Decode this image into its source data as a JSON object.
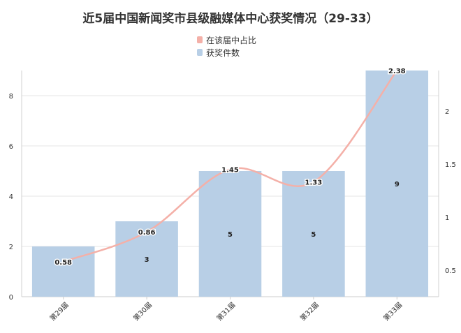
{
  "chart_data": {
    "type": "bar",
    "title": "近5届中国新闻奖市县级融媒体中心获奖情况（29-33）",
    "categories": [
      "第29届",
      "第30届",
      "第31届",
      "第32届",
      "第33届"
    ],
    "series": [
      {
        "name": "获奖件数",
        "type": "bar",
        "axis": "left",
        "color": "#b8cfe6",
        "values": [
          2,
          3,
          5,
          5,
          9
        ],
        "data_labels": [
          "",
          "3",
          "5",
          "5",
          "9"
        ]
      },
      {
        "name": "在该届中占比",
        "type": "line",
        "axis": "right",
        "color": "#f4b0a8",
        "values": [
          0.58,
          0.86,
          1.45,
          1.33,
          2.38
        ],
        "data_labels": [
          "0.58",
          "0.86",
          "1.45",
          "1.33",
          "2.38"
        ]
      }
    ],
    "left_axis": {
      "ylim": [
        0,
        9
      ],
      "ticks": [
        "0",
        "2",
        "4",
        "6",
        "8"
      ]
    },
    "right_axis": {
      "ylim": [
        0.25,
        2.38
      ],
      "ticks": [
        "0.5",
        "1",
        "1.5",
        "2"
      ]
    },
    "legend_position": "top-center",
    "grid": true
  }
}
